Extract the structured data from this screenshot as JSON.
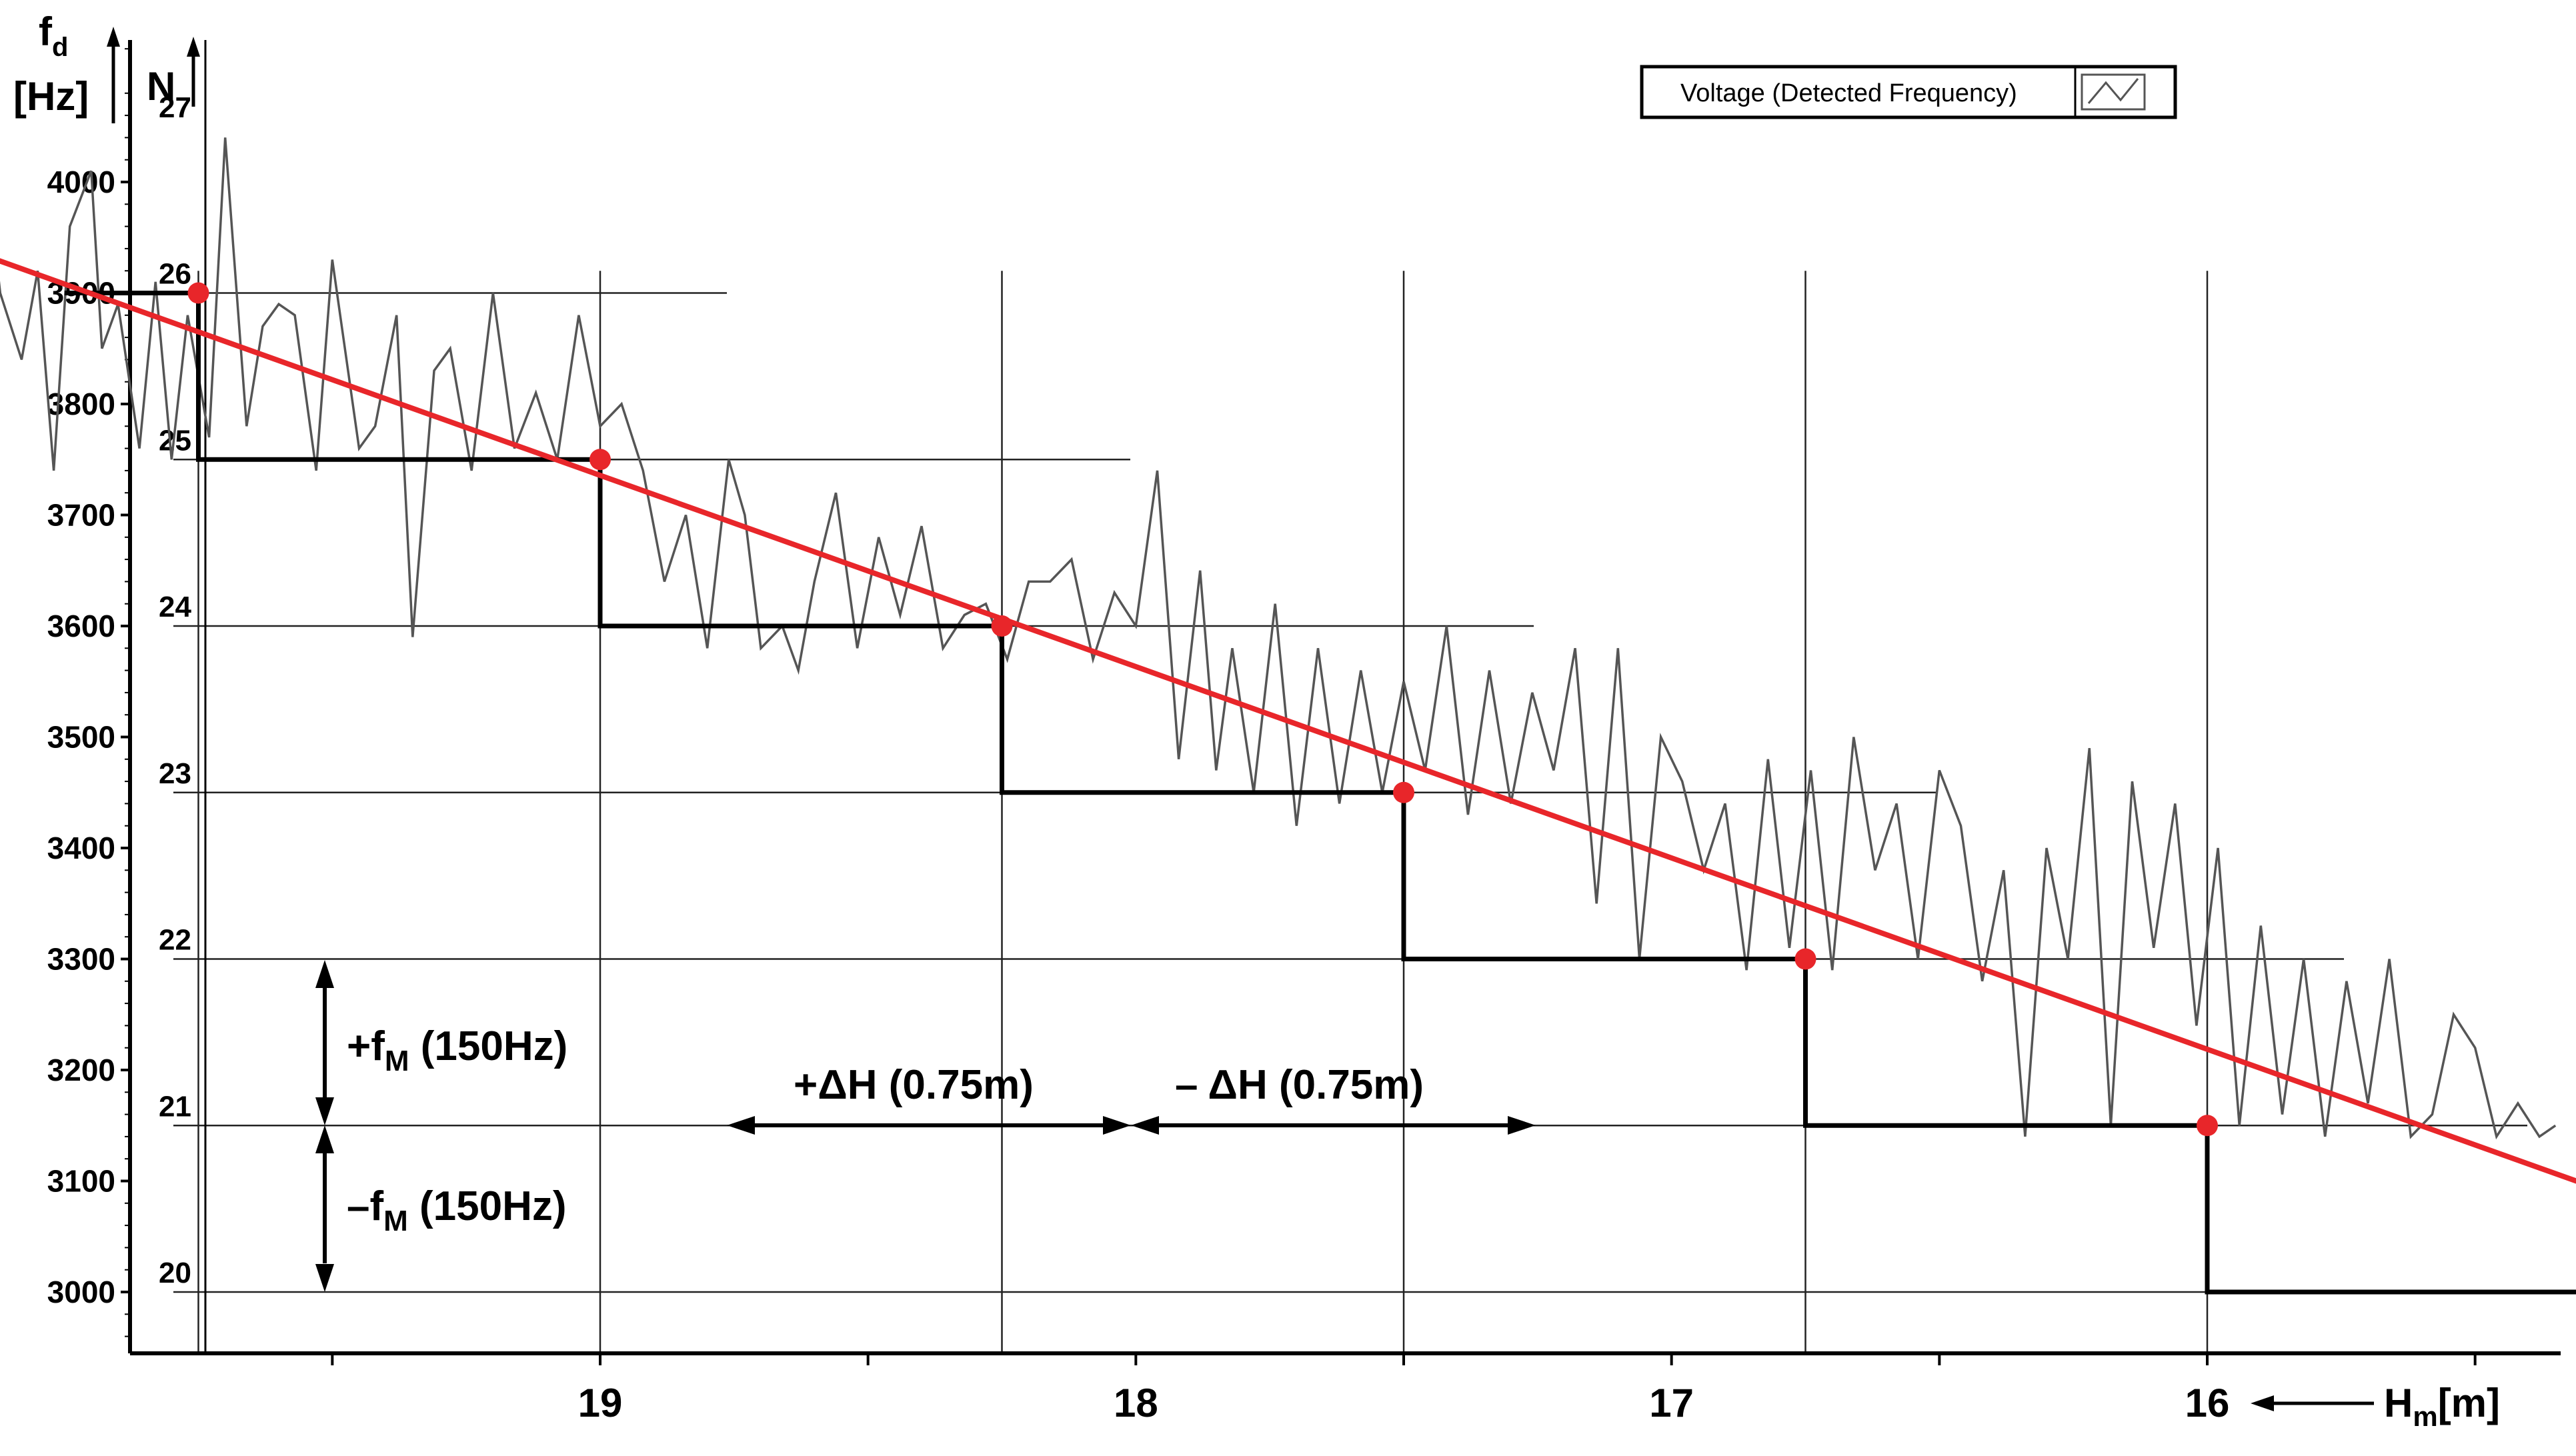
{
  "chart_data": {
    "type": "line",
    "title": "",
    "xlabel": "Hm[m]",
    "ylabel": "fd [Hz]",
    "y2label": "N",
    "x_direction": "decreasing",
    "xlim": [
      20.22,
      15.12
    ],
    "ylim": [
      2945,
      4145
    ],
    "x_ticks": [
      19,
      18,
      17,
      16
    ],
    "x_tick_labels": [
      "19",
      "18",
      "17",
      "16"
    ],
    "y_ticks": [
      3000,
      3100,
      3200,
      3300,
      3400,
      3500,
      3600,
      3700,
      3800,
      3900,
      4000
    ],
    "y_tick_labels": [
      "3000",
      "3100",
      "3200",
      "3300",
      "3400",
      "3500",
      "3600",
      "3700",
      "3800",
      "3900",
      "4000"
    ],
    "n_levels": [
      {
        "n": "20",
        "f": 3000
      },
      {
        "n": "21",
        "f": 3150
      },
      {
        "n": "22",
        "f": 3300
      },
      {
        "n": "23",
        "f": 3450
      },
      {
        "n": "24",
        "f": 3600
      },
      {
        "n": "25",
        "f": 3750
      },
      {
        "n": "26",
        "f": 3900
      },
      {
        "n": "27",
        "f": 4050
      }
    ],
    "legend": {
      "label": "Voltage (Detected Frequency)",
      "position": "top-right"
    },
    "grid": false,
    "series": [
      {
        "name": "Voltage (Detected Frequency)",
        "kind": "noisy",
        "color": "#555555",
        "x": [
          20.15,
          20.12,
          20.08,
          20.05,
          20.02,
          19.99,
          19.95,
          19.93,
          19.9,
          19.86,
          19.83,
          19.8,
          19.77,
          19.73,
          19.7,
          19.66,
          19.63,
          19.6,
          19.57,
          19.53,
          19.5,
          19.45,
          19.42,
          19.38,
          19.35,
          19.31,
          19.28,
          19.24,
          19.2,
          19.16,
          19.12,
          19.08,
          19.04,
          19.0,
          18.96,
          18.92,
          18.88,
          18.84,
          18.8,
          18.76,
          18.73,
          18.7,
          18.66,
          18.63,
          18.6,
          18.56,
          18.52,
          18.48,
          18.44,
          18.4,
          18.36,
          18.32,
          18.28,
          18.24,
          18.2,
          18.16,
          18.12,
          18.08,
          18.04,
          18.0,
          17.96,
          17.92,
          17.88,
          17.85,
          17.82,
          17.78,
          17.74,
          17.7,
          17.66,
          17.62,
          17.58,
          17.54,
          17.5,
          17.46,
          17.42,
          17.38,
          17.34,
          17.3,
          17.26,
          17.22,
          17.18,
          17.14,
          17.1,
          17.06,
          17.02,
          16.98,
          16.94,
          16.9,
          16.86,
          16.82,
          16.78,
          16.74,
          16.7,
          16.66,
          16.62,
          16.58,
          16.54,
          16.5,
          16.46,
          16.42,
          16.38,
          16.34,
          16.3,
          16.26,
          16.22,
          16.18,
          16.14,
          16.1,
          16.06,
          16.02,
          15.98,
          15.94,
          15.9,
          15.86,
          15.82,
          15.78,
          15.74,
          15.7,
          15.66,
          15.62,
          15.58,
          15.54,
          15.5,
          15.46,
          15.42,
          15.38,
          15.35
        ],
        "y": [
          4030,
          3900,
          3840,
          3920,
          3740,
          3960,
          4010,
          3850,
          3890,
          3760,
          3910,
          3750,
          3880,
          3770,
          4040,
          3780,
          3870,
          3890,
          3880,
          3740,
          3930,
          3760,
          3780,
          3880,
          3590,
          3830,
          3850,
          3740,
          3900,
          3760,
          3810,
          3750,
          3880,
          3780,
          3800,
          3740,
          3640,
          3700,
          3580,
          3750,
          3700,
          3580,
          3600,
          3560,
          3640,
          3720,
          3580,
          3680,
          3610,
          3690,
          3580,
          3610,
          3620,
          3570,
          3640,
          3640,
          3660,
          3570,
          3630,
          3600,
          3740,
          3480,
          3650,
          3470,
          3580,
          3450,
          3620,
          3420,
          3580,
          3440,
          3560,
          3450,
          3550,
          3470,
          3600,
          3430,
          3560,
          3440,
          3540,
          3470,
          3580,
          3350,
          3580,
          3300,
          3500,
          3460,
          3380,
          3440,
          3290,
          3480,
          3310,
          3470,
          3290,
          3500,
          3380,
          3440,
          3300,
          3470,
          3420,
          3280,
          3380,
          3140,
          3400,
          3300,
          3490,
          3150,
          3460,
          3310,
          3440,
          3240,
          3400,
          3150,
          3330,
          3160,
          3300,
          3140,
          3280,
          3170,
          3300,
          3140,
          3160,
          3250,
          3220,
          3140,
          3170,
          3140,
          3150
        ]
      },
      {
        "name": "",
        "kind": "trend",
        "color": "#e8262a",
        "x": [
          20.22,
          15.12
        ],
        "y": [
          3946,
          3067
        ]
      }
    ],
    "staircase": {
      "color": "#000000",
      "x": [
        20.0,
        19.75,
        19.75,
        19.0,
        19.0,
        18.25,
        18.25,
        17.5,
        17.5,
        16.75,
        16.75,
        16.0,
        16.0,
        15.25,
        15.25,
        15.15
      ],
      "y": [
        3900,
        3900,
        3750,
        3750,
        3600,
        3600,
        3450,
        3450,
        3300,
        3300,
        3150,
        3150,
        3000,
        3000,
        3000,
        3000
      ]
    },
    "markers": {
      "color": "#e8262a",
      "x": [
        19.75,
        19.0,
        18.25,
        17.5,
        16.75,
        16.0,
        15.25
      ],
      "y": [
        3900,
        3750,
        3600,
        3450,
        3300,
        3150,
        3150
      ]
    },
    "annotations": [
      {
        "id": "plus-fm",
        "text_main": "+f",
        "text_sub": "M",
        "text_rest": " (150Hz)"
      },
      {
        "id": "minus-fm",
        "text_main": "–f",
        "text_sub": "M",
        "text_rest": " (150Hz)"
      },
      {
        "id": "plus-dh",
        "text": "+ΔH (0.75m)"
      },
      {
        "id": "minus-dh",
        "text": "– ΔH (0.75m)"
      }
    ]
  }
}
